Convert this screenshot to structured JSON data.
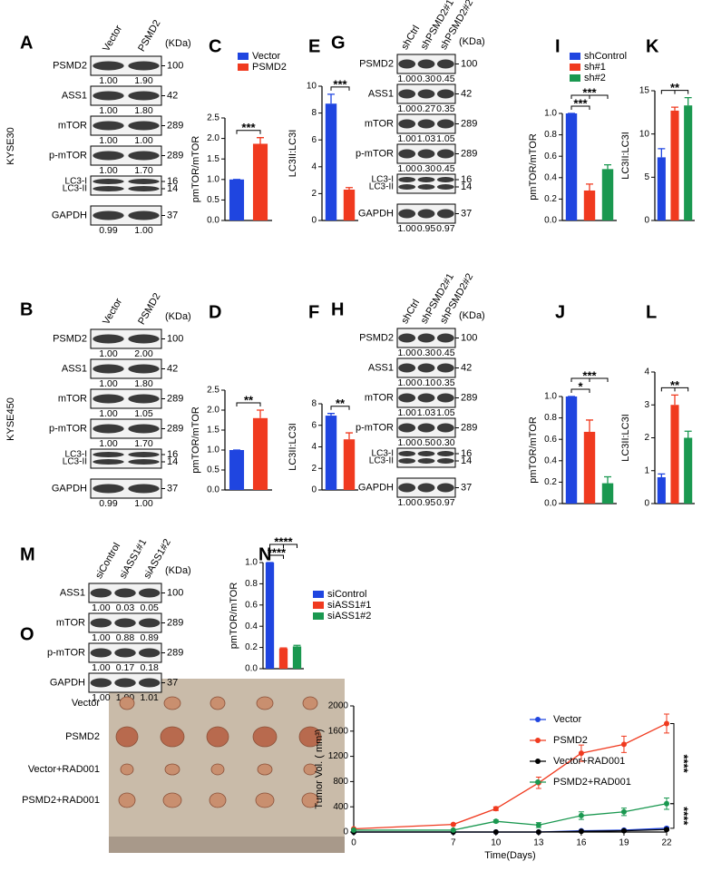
{
  "blots": [
    {
      "label": "A",
      "cell_line": "KYSE30",
      "lanes": [
        "Vector",
        "PSMD2"
      ],
      "unit": "(KDa)",
      "rows": [
        {
          "names": [
            "PSMD2"
          ],
          "kda": [
            100
          ],
          "quant": [
            "1.00",
            "1.90"
          ]
        },
        {
          "names": [
            "ASS1"
          ],
          "kda": [
            42
          ],
          "quant": [
            "1.00",
            "1.80"
          ]
        },
        {
          "names": [
            "mTOR"
          ],
          "kda": [
            289
          ],
          "quant": [
            "1.00",
            "1.00"
          ]
        },
        {
          "names": [
            "p-mTOR"
          ],
          "kda": [
            289
          ],
          "quant": [
            "1.00",
            "1.70"
          ]
        },
        {
          "names": [
            "LC3-I",
            "LC3-II"
          ],
          "kda": [
            16,
            14
          ]
        },
        {
          "names": [
            "GAPDH"
          ],
          "kda": [
            37
          ],
          "quant": [
            "0.99",
            "1.00"
          ]
        }
      ]
    },
    {
      "label": "B",
      "cell_line": "KYSE450",
      "lanes": [
        "Vector",
        "PSMD2"
      ],
      "unit": "(KDa)",
      "rows": [
        {
          "names": [
            "PSMD2"
          ],
          "kda": [
            100
          ],
          "quant": [
            "1.00",
            "2.00"
          ]
        },
        {
          "names": [
            "ASS1"
          ],
          "kda": [
            42
          ],
          "quant": [
            "1.00",
            "1.80"
          ]
        },
        {
          "names": [
            "mTOR"
          ],
          "kda": [
            289
          ],
          "quant": [
            "1.00",
            "1.05"
          ]
        },
        {
          "names": [
            "p-mTOR"
          ],
          "kda": [
            289
          ],
          "quant": [
            "1.00",
            "1.70"
          ]
        },
        {
          "names": [
            "LC3-I",
            "LC3-II"
          ],
          "kda": [
            16,
            14
          ]
        },
        {
          "names": [
            "GAPDH"
          ],
          "kda": [
            37
          ],
          "quant": [
            "0.99",
            "1.00"
          ]
        }
      ]
    },
    {
      "label": "G",
      "lanes": [
        "shCtrl",
        "shPSMD2#1",
        "shPSMD2#2"
      ],
      "unit": "(KDa)",
      "rows": [
        {
          "names": [
            "PSMD2"
          ],
          "kda": [
            100
          ],
          "quant": [
            "1.00",
            "0.30",
            "0.45"
          ]
        },
        {
          "names": [
            "ASS1"
          ],
          "kda": [
            42
          ],
          "quant": [
            "1.00",
            "0.27",
            "0.35"
          ]
        },
        {
          "names": [
            "mTOR"
          ],
          "kda": [
            289
          ],
          "quant": [
            "1.00",
            "1.03",
            "1.05"
          ]
        },
        {
          "names": [
            "p-mTOR"
          ],
          "kda": [
            289
          ],
          "quant": [
            "1.00",
            "0.30",
            "0.45"
          ]
        },
        {
          "names": [
            "LC3-I",
            "LC3-II"
          ],
          "kda": [
            16,
            14
          ]
        },
        {
          "names": [
            "GAPDH"
          ],
          "kda": [
            37
          ],
          "quant": [
            "1.00",
            "0.95",
            "0.97"
          ]
        }
      ]
    },
    {
      "label": "H",
      "lanes": [
        "shCtrl",
        "shPSMD2#1",
        "shPSMD2#2"
      ],
      "unit": "(KDa)",
      "rows": [
        {
          "names": [
            "PSMD2"
          ],
          "kda": [
            100
          ],
          "quant": [
            "1.00",
            "0.30",
            "0.45"
          ]
        },
        {
          "names": [
            "ASS1"
          ],
          "kda": [
            42
          ],
          "quant": [
            "1.00",
            "0.10",
            "0.35"
          ]
        },
        {
          "names": [
            "mTOR"
          ],
          "kda": [
            289
          ],
          "quant": [
            "1.00",
            "1.03",
            "1.05"
          ]
        },
        {
          "names": [
            "p-mTOR"
          ],
          "kda": [
            289
          ],
          "quant": [
            "1.00",
            "0.50",
            "0.30"
          ]
        },
        {
          "names": [
            "LC3-I",
            "LC3-II"
          ],
          "kda": [
            16,
            14
          ]
        },
        {
          "names": [
            "GAPDH"
          ],
          "kda": [
            37
          ],
          "quant": [
            "1.00",
            "0.95",
            "0.97"
          ]
        }
      ]
    },
    {
      "label": "M",
      "lanes": [
        "siControl",
        "siASS1#1",
        "siASS1#2"
      ],
      "unit": "(KDa)",
      "rows": [
        {
          "names": [
            "ASS1"
          ],
          "kda": [
            100
          ],
          "quant": [
            "1.00",
            "0.03",
            "0.05"
          ]
        },
        {
          "names": [
            "mTOR"
          ],
          "kda": [
            289
          ],
          "quant": [
            "1.00",
            "0.88",
            "0.89"
          ]
        },
        {
          "names": [
            "p-mTOR"
          ],
          "kda": [
            289
          ],
          "quant": [
            "1.00",
            "0.17",
            "0.18"
          ]
        },
        {
          "names": [
            "GAPDH"
          ],
          "kda": [
            37
          ],
          "quant": [
            "1.00",
            "1.00",
            "1.01"
          ]
        }
      ]
    }
  ],
  "chart_data": [
    {
      "type": "bar",
      "label": "C",
      "y_label": "pmTOR/mTOR",
      "categories": [
        "Vector",
        "PSMD2"
      ],
      "colors": [
        "#1f45e0",
        "#f03a1f"
      ],
      "values": [
        1.0,
        1.87
      ],
      "errors": [
        0,
        0.15
      ],
      "ylim": [
        0,
        2.5
      ],
      "yticks": [
        {
          "value": 0,
          "label": "0.0"
        },
        {
          "value": 0.5,
          "label": "0.5"
        },
        {
          "value": 1,
          "label": "1.0"
        },
        {
          "value": 1.5,
          "label": "1.5"
        },
        {
          "value": 2,
          "label": "2.0"
        },
        {
          "value": 2.5,
          "label": "2.5"
        }
      ],
      "significance": [
        "***"
      ],
      "legend": true
    },
    {
      "type": "bar",
      "label": "E",
      "y_label": "LC3II:LC3I",
      "categories": [
        "Vector",
        "PSMD2"
      ],
      "colors": [
        "#1f45e0",
        "#f03a1f"
      ],
      "values": [
        8.7,
        2.3
      ],
      "errors": [
        0.7,
        0.15
      ],
      "ylim": [
        0,
        10
      ],
      "yticks": [
        0,
        2,
        4,
        6,
        8,
        10
      ],
      "significance": [
        "***"
      ],
      "legend": false
    },
    {
      "type": "bar",
      "label": "I",
      "y_label": "pmTOR/mTOR",
      "categories": [
        "shControl",
        "sh#1",
        "sh#2"
      ],
      "colors": [
        "#1f45e0",
        "#f03a1f",
        "#1a9850"
      ],
      "values": [
        1.0,
        0.28,
        0.48
      ],
      "errors": [
        0,
        0.06,
        0.04
      ],
      "ylim": [
        0,
        1
      ],
      "yticks": [
        {
          "value": 0,
          "label": "0.0"
        },
        {
          "value": 0.2,
          "label": "0.2"
        },
        {
          "value": 0.4,
          "label": "0.4"
        },
        {
          "value": 0.6,
          "label": "0.6"
        },
        {
          "value": 0.8,
          "label": "0.8"
        },
        {
          "value": 1,
          "label": "1.0"
        }
      ],
      "significance": [
        "***",
        "***"
      ],
      "legend": true
    },
    {
      "type": "bar",
      "label": "K",
      "y_label": "LC3II:LC3I",
      "categories": [
        "shControl",
        "sh#1",
        "sh#2"
      ],
      "colors": [
        "#1f45e0",
        "#f03a1f",
        "#1a9850"
      ],
      "values": [
        7.3,
        12.7,
        13.3
      ],
      "errors": [
        1.0,
        0.4,
        0.9
      ],
      "ylim": [
        0,
        15
      ],
      "yticks": [
        0,
        5,
        10,
        15
      ],
      "significance": [
        "**"
      ],
      "legend": false
    },
    {
      "type": "bar",
      "label": "D",
      "y_label": "pmTOR/mTOR",
      "categories": [
        "Vector",
        "PSMD2"
      ],
      "colors": [
        "#1f45e0",
        "#f03a1f"
      ],
      "values": [
        1.0,
        1.8
      ],
      "errors": [
        0,
        0.2
      ],
      "ylim": [
        0,
        2.5
      ],
      "yticks": [
        {
          "value": 0,
          "label": "0.0"
        },
        {
          "value": 0.5,
          "label": "0.5"
        },
        {
          "value": 1,
          "label": "1.0"
        },
        {
          "value": 1.5,
          "label": "1.5"
        },
        {
          "value": 2,
          "label": "2.0"
        },
        {
          "value": 2.5,
          "label": "2.5"
        }
      ],
      "significance": [
        "**"
      ],
      "legend": false
    },
    {
      "type": "bar",
      "label": "F",
      "y_label": "LC3II:LC3I",
      "categories": [
        "Vector",
        "PSMD2"
      ],
      "colors": [
        "#1f45e0",
        "#f03a1f"
      ],
      "values": [
        6.9,
        4.7
      ],
      "errors": [
        0.2,
        0.6
      ],
      "ylim": [
        0,
        8
      ],
      "yticks": [
        0,
        2,
        4,
        6,
        8
      ],
      "significance": [
        "**"
      ],
      "legend": false
    },
    {
      "type": "bar",
      "label": "J",
      "y_label": "pmTOR/mTOR",
      "categories": [
        "shControl",
        "sh#1",
        "sh#2"
      ],
      "colors": [
        "#1f45e0",
        "#f03a1f",
        "#1a9850"
      ],
      "values": [
        1.0,
        0.67,
        0.19
      ],
      "errors": [
        0,
        0.11,
        0.06
      ],
      "ylim": [
        0,
        1
      ],
      "yticks": [
        {
          "value": 0,
          "label": "0.0"
        },
        {
          "value": 0.2,
          "label": "0.2"
        },
        {
          "value": 0.4,
          "label": "0.4"
        },
        {
          "value": 0.6,
          "label": "0.6"
        },
        {
          "value": 0.8,
          "label": "0.8"
        },
        {
          "value": 1,
          "label": "1.0"
        }
      ],
      "significance": [
        "*",
        "***"
      ],
      "legend": false
    },
    {
      "type": "bar",
      "label": "L",
      "y_label": "LC3II:LC3I",
      "categories": [
        "shControl",
        "sh#1",
        "sh#2"
      ],
      "colors": [
        "#1f45e0",
        "#f03a1f",
        "#1a9850"
      ],
      "values": [
        0.8,
        3.0,
        2.0
      ],
      "errors": [
        0.1,
        0.3,
        0.2
      ],
      "ylim": [
        0,
        4
      ],
      "yticks": [
        0,
        1,
        2,
        3,
        4
      ],
      "significance": [
        "**"
      ],
      "legend": false
    },
    {
      "type": "bar",
      "label": "N",
      "y_label": "pmTOR/mTOR",
      "categories": [
        "siControl",
        "siASS1#1",
        "siASS1#2"
      ],
      "colors": [
        "#1f45e0",
        "#f03a1f",
        "#1a9850"
      ],
      "values": [
        1.0,
        0.19,
        0.21
      ],
      "errors": [
        0,
        0.005,
        0.01
      ],
      "ylim": [
        0,
        1
      ],
      "yticks": [
        {
          "value": 0,
          "label": "0.0"
        },
        {
          "value": 0.2,
          "label": "0.2"
        },
        {
          "value": 0.4,
          "label": "0.4"
        },
        {
          "value": 0.6,
          "label": "0.6"
        },
        {
          "value": 0.8,
          "label": "0.8"
        },
        {
          "value": 1,
          "label": "1.0"
        }
      ],
      "significance": [
        "****",
        "****"
      ],
      "legend": true
    },
    {
      "type": "line",
      "label": "O",
      "y_label": "Tumor Vol. ( mm³)",
      "x_label": "Time(Days)",
      "x": [
        0,
        7,
        10,
        13,
        16,
        19,
        22
      ],
      "xlim": [
        0,
        22
      ],
      "xticks": [
        0,
        7,
        10,
        13,
        16,
        19,
        22
      ],
      "ylim": [
        0,
        2000
      ],
      "yticks": [
        0,
        400,
        800,
        1200,
        1600,
        2000
      ],
      "series": [
        {
          "name": "Vector",
          "color": "#1f45e0",
          "values": [
            0,
            0,
            0,
            0,
            20,
            30,
            60
          ],
          "errors": [
            0,
            0,
            0,
            0,
            8,
            10,
            15
          ]
        },
        {
          "name": "PSMD2",
          "color": "#f03a1f",
          "values": [
            50,
            120,
            370,
            780,
            1250,
            1390,
            1720
          ],
          "errors": [
            0,
            0,
            30,
            90,
            130,
            130,
            150
          ]
        },
        {
          "name": "Vector+RAD001",
          "color": "#000000",
          "values": [
            0,
            0,
            0,
            0,
            10,
            20,
            40
          ],
          "errors": [
            0,
            0,
            0,
            0,
            5,
            8,
            12
          ]
        },
        {
          "name": "PSMD2+RAD001",
          "color": "#1a9850",
          "values": [
            30,
            30,
            170,
            110,
            260,
            320,
            450
          ],
          "errors": [
            0,
            0,
            20,
            40,
            60,
            60,
            90
          ]
        }
      ],
      "significance": [
        "****",
        "****"
      ]
    }
  ],
  "tumor_photo": {
    "groups": [
      "Vector",
      "PSMD2",
      "Vector+RAD001",
      "PSMD2+RAD001"
    ]
  }
}
